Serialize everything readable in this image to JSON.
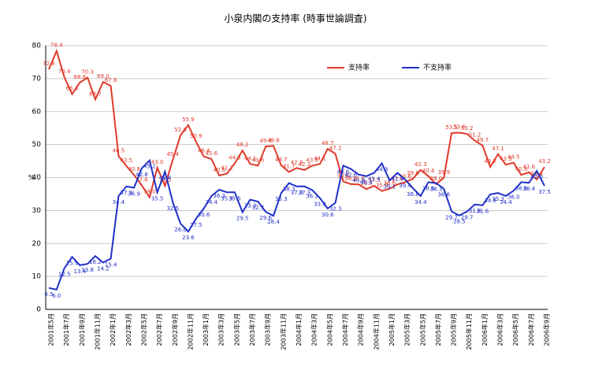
{
  "chart_data": {
    "type": "line",
    "title": "小泉内閣の支持率 (時事世論調査)",
    "y_label": "%",
    "categories": [
      "2001年5月",
      null,
      "2001年7月",
      null,
      "2001年9月",
      null,
      "2001年11月",
      null,
      "2002年1月",
      null,
      "2002年3月",
      null,
      "2002年5月",
      null,
      "2002年7月",
      null,
      "2002年9月",
      null,
      "2002年11月",
      null,
      "2003年1月",
      null,
      "2003年3月",
      null,
      "2003年5月",
      null,
      "2003年7月",
      null,
      "2003年9月",
      null,
      "2003年11月",
      null,
      "2004年1月",
      null,
      "2004年3月",
      null,
      "2004年5月",
      null,
      "2004年7月",
      null,
      "2004年9月",
      null,
      "2004年11月",
      null,
      "2005年1月",
      null,
      "2005年3月",
      null,
      "2005年5月",
      null,
      "2005年7月",
      null,
      "2005年9月",
      null,
      "2005年11月",
      null,
      "2006年1月",
      null,
      "2006年3月",
      null,
      "2006年5月",
      null,
      "2006年7月",
      null,
      "2006年9月"
    ],
    "series": [
      {
        "name": "支持率",
        "color": "#e0392b",
        "values": [
          72.8,
          78.4,
          70.4,
          65.3,
          68.8,
          70.3,
          63.7,
          69.0,
          67.8,
          46.5,
          43.5,
          40.8,
          37.6,
          34.0,
          43.0,
          37.5,
          45.4,
          52.8,
          55.9,
          50.9,
          46.4,
          45.6,
          40.6,
          41.2,
          44.3,
          48.2,
          44.1,
          43.6,
          49.4,
          49.6,
          43.7,
          41.7,
          42.9,
          42.3,
          43.6,
          44.1,
          48.7,
          47.2,
          38.8,
          38.0,
          37.9,
          36.5,
          37.5,
          35.9,
          36.6,
          37.9,
          38.6,
          39.6,
          42.3,
          40.4,
          38.0,
          39.9,
          53.5,
          53.6,
          53.2,
          51.2,
          49.7,
          43.2,
          47.1,
          43.9,
          44.5,
          40.8,
          41.6,
          39.4,
          43.2
        ],
        "value_labels": [
          "72.8",
          "78.4",
          "70.4",
          "65.3",
          "68.8",
          "70.3",
          "63.7",
          "69.0",
          "67.8",
          "46.5",
          "43.5",
          "40.8",
          "37.6",
          "34.0",
          "43.0",
          "37.5",
          "45.4",
          "52.8",
          "55.9",
          "50.9",
          "46.4",
          "45.6",
          "40.6",
          "41.2",
          "44.3",
          "48.2",
          "44.1",
          "43.6",
          "49.4",
          "49.6",
          "43.7",
          "41.7",
          "42.9",
          "42.3",
          "43.6",
          "44.1",
          "48.7",
          "47.2",
          "38.8",
          "38.0",
          "37.9",
          "36.5",
          "37.5",
          "35.9",
          "36.6",
          "37.9",
          "38.6",
          "39.6",
          "42.3",
          "40.4",
          "38.0",
          "39.9",
          "53.5",
          "53.6",
          "53.2",
          "51.2",
          "49.7",
          "43.2",
          "47.1",
          "43.9",
          "44.5",
          "40.8",
          "41.6",
          "39.4",
          "43.2"
        ]
      },
      {
        "name": "不支持率",
        "color": "#1f2fc8",
        "values": [
          6.5,
          6.0,
          12.5,
          15.9,
          13.4,
          13.8,
          16.2,
          14.2,
          15.4,
          34.4,
          37.3,
          36.9,
          42.8,
          45.2,
          35.5,
          41.8,
          32.5,
          26.0,
          23.6,
          27.5,
          30.6,
          34.4,
          36.3,
          35.5,
          35.5,
          29.5,
          33.3,
          32.7,
          29.6,
          28.4,
          35.3,
          38.3,
          37.3,
          37.3,
          36.2,
          33.8,
          30.6,
          32.3,
          43.6,
          42.6,
          40.9,
          40.4,
          41.4,
          44.3,
          39.1,
          41.4,
          39.4,
          36.8,
          34.4,
          38.6,
          38.3,
          36.6,
          29.7,
          28.5,
          29.7,
          31.8,
          31.6,
          34.9,
          35.3,
          34.4,
          36.0,
          38.6,
          38.4,
          42.0,
          37.5
        ],
        "value_labels": [
          "6.5",
          "6.0",
          "12.5",
          "15.9",
          "13.4",
          "13.8",
          "16.2",
          "14.2",
          "15.4",
          "34.4",
          "37.3",
          "36.9",
          "42.8",
          "45.2",
          "35.5",
          "41.8",
          "32.5",
          "26.0",
          "23.6",
          "27.5",
          "30.6",
          "34.4",
          "36.3",
          "35.5",
          "35.5",
          "29.5",
          "33.3",
          "32.7",
          "29.6",
          "28.4",
          "35.3",
          "38.3",
          "37.3",
          "37.3",
          "36.2",
          "33.8",
          "30.6",
          "32.3",
          "43.6",
          "42.6",
          "40.9",
          "40.4",
          "41.4",
          "44.3",
          "39.1",
          "41.4",
          "39.4",
          "36.8",
          "34.4",
          "38.6",
          "38.3",
          "36.6",
          "29.7",
          "28.5",
          "29.7",
          "31.8",
          "31.6",
          "34.9",
          "35.3",
          "34.4",
          "36.0",
          "38.6",
          "38.4",
          "42.0",
          "37.5"
        ]
      }
    ],
    "ylim": [
      0,
      80
    ],
    "yticks": [
      0,
      10,
      20,
      30,
      40,
      50,
      60,
      70,
      80
    ],
    "grid": true
  }
}
